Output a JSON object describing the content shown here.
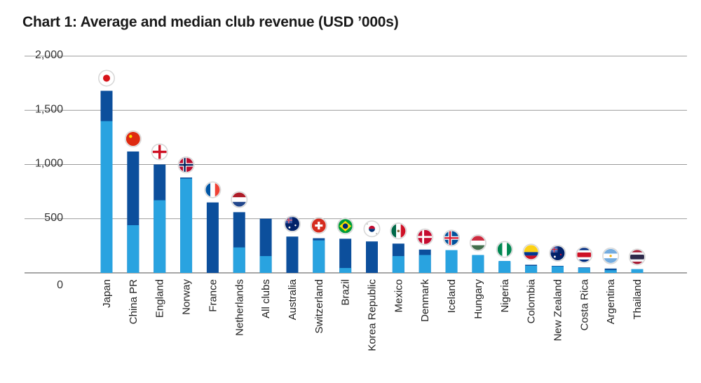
{
  "chart_data": {
    "type": "bar",
    "title": "Chart 1: Average and median club revenue (USD ’000s)",
    "xlabel": "",
    "ylabel": "",
    "ylim": [
      0,
      2000
    ],
    "yticks": [
      0,
      500,
      1000,
      1500,
      2000
    ],
    "ytick_labels": [
      "0",
      "500",
      "1,000",
      "1,500",
      "2,000"
    ],
    "grid": true,
    "categories": [
      "Japan",
      "China PR",
      "England",
      "Norway",
      "France",
      "Netherlands",
      "All clubs",
      "Australia",
      "Switzerland",
      "Brazil",
      "Korea Republic",
      "Mexico",
      "Denmark",
      "Iceland",
      "Hungary",
      "Nigeria",
      "Colombia",
      "New Zealand",
      "Costa Rica",
      "Argentina",
      "Thailand"
    ],
    "series": [
      {
        "values": [
          1400,
          440,
          670,
          870,
          0,
          235,
          155,
          0,
          300,
          45,
          0,
          155,
          165,
          210,
          165,
          110,
          65,
          60,
          45,
          25,
          35
        ]
      },
      {
        "values": [
          1680,
          1120,
          1000,
          880,
          650,
          560,
          500,
          335,
          320,
          315,
          290,
          270,
          215,
          205,
          160,
          100,
          75,
          65,
          50,
          40,
          30
        ]
      }
    ],
    "colors": {
      "median": "#29a3e0",
      "average": "#0c4f9c",
      "grid": "#9a9a9a",
      "axis": "#888888"
    },
    "flags": [
      "japan-flag",
      "china-flag",
      "england-flag",
      "norway-flag",
      "france-flag",
      "netherlands-flag",
      "",
      "australia-flag",
      "switzerland-flag",
      "brazil-flag",
      "korea-flag",
      "mexico-flag",
      "denmark-flag",
      "iceland-flag",
      "hungary-flag",
      "nigeria-flag",
      "colombia-flag",
      "new-zealand-flag",
      "costa-rica-flag",
      "argentina-flag",
      "thailand-flag"
    ]
  }
}
